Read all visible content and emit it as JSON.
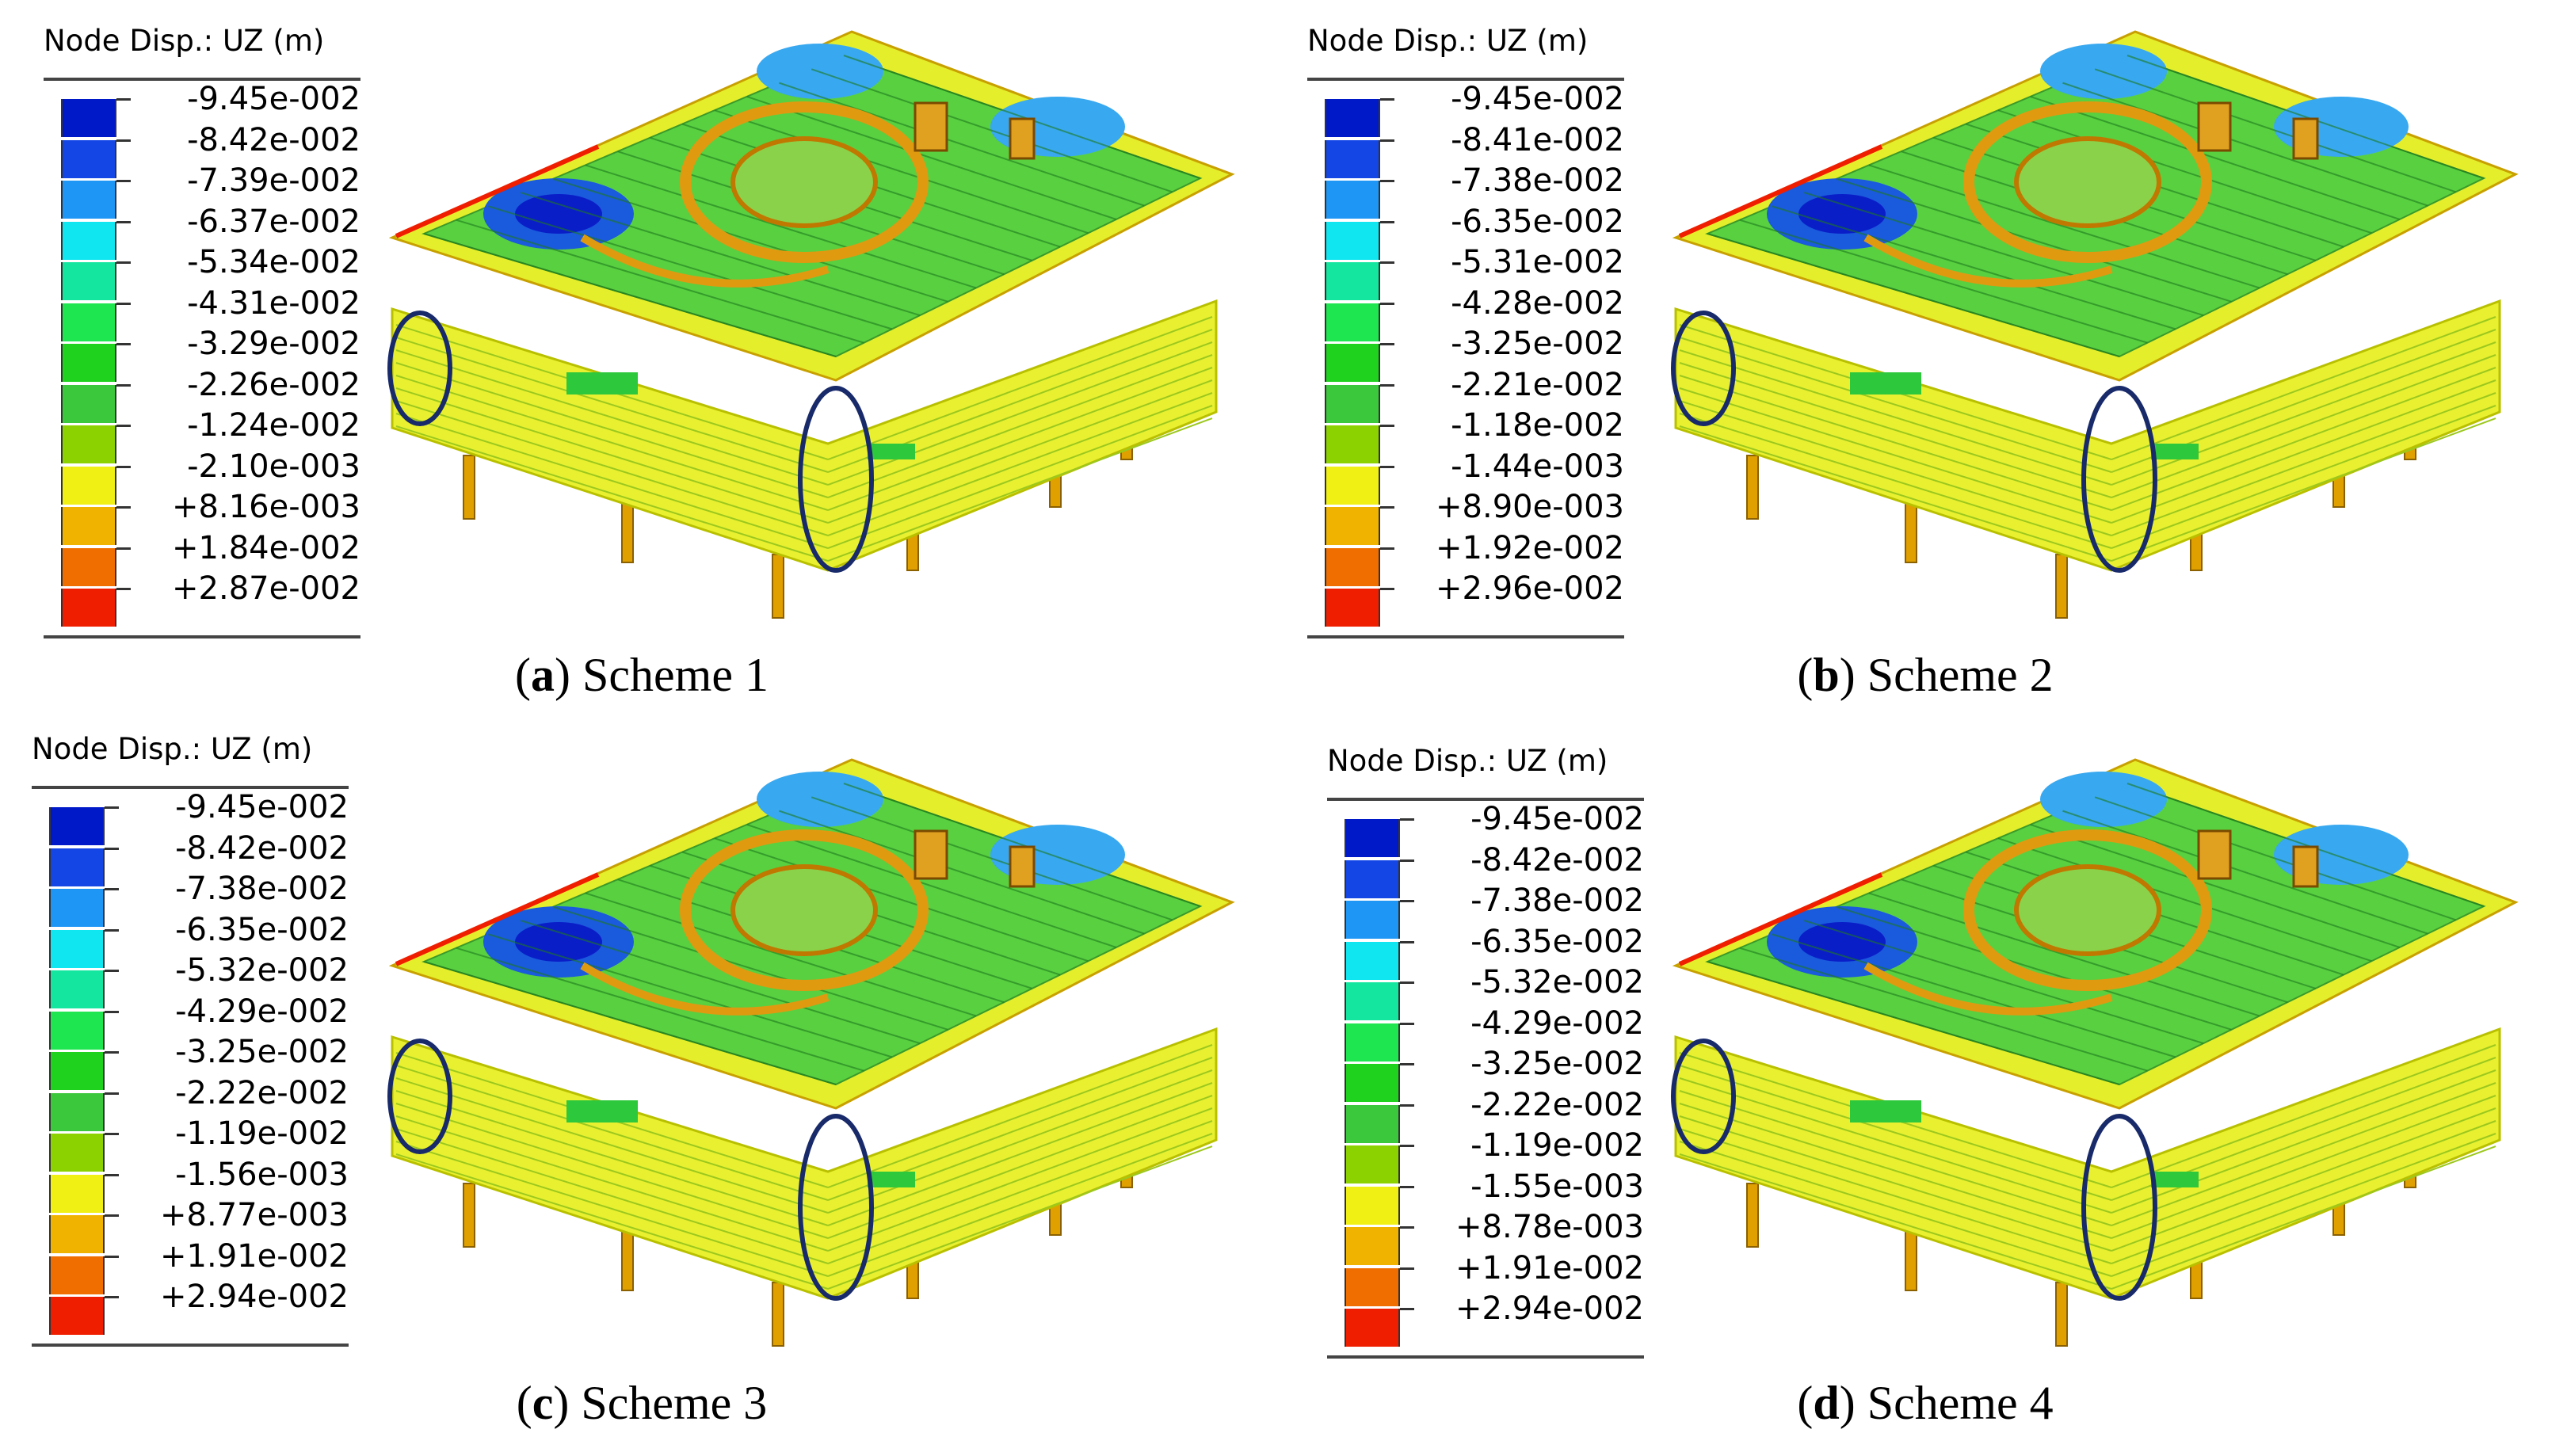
{
  "legend_colors": [
    "#0019c8",
    "#1446e6",
    "#1e96f5",
    "#10e6f0",
    "#14e6a0",
    "#1ee650",
    "#1ed21e",
    "#3cc83c",
    "#8cd200",
    "#f0f014",
    "#f0b400",
    "#f06e00",
    "#f01e00"
  ],
  "panels": [
    {
      "legend_title": "Node Disp.: UZ (m)",
      "legend_labels": [
        "-9.45e-002",
        "-8.42e-002",
        "-7.39e-002",
        "-6.37e-002",
        "-5.34e-002",
        "-4.31e-002",
        "-3.29e-002",
        "-2.26e-002",
        "-1.24e-002",
        "-2.10e-003",
        "+8.16e-003",
        "+1.84e-002",
        "+2.87e-002"
      ],
      "caption_paren_open": "(",
      "caption_letter": "a",
      "caption_paren_close": ")",
      "caption_text": " Scheme 1"
    },
    {
      "legend_title": "Node Disp.: UZ (m)",
      "legend_labels": [
        "-9.45e-002",
        "-8.41e-002",
        "-7.38e-002",
        "-6.35e-002",
        "-5.31e-002",
        "-4.28e-002",
        "-3.25e-002",
        "-2.21e-002",
        "-1.18e-002",
        "-1.44e-003",
        "+8.90e-003",
        "+1.92e-002",
        "+2.96e-002"
      ],
      "caption_paren_open": "(",
      "caption_letter": "b",
      "caption_paren_close": ")",
      "caption_text": " Scheme 2"
    },
    {
      "legend_title": "Node Disp.: UZ (m)",
      "legend_labels": [
        "-9.45e-002",
        "-8.42e-002",
        "-7.38e-002",
        "-6.35e-002",
        "-5.32e-002",
        "-4.29e-002",
        "-3.25e-002",
        "-2.22e-002",
        "-1.19e-002",
        "-1.56e-003",
        "+8.77e-003",
        "+1.91e-002",
        "+2.94e-002"
      ],
      "caption_paren_open": "(",
      "caption_letter": "c",
      "caption_paren_close": ")",
      "caption_text": " Scheme 3"
    },
    {
      "legend_title": "Node Disp.: UZ (m)",
      "legend_labels": [
        "-9.45e-002",
        "-8.42e-002",
        "-7.38e-002",
        "-6.35e-002",
        "-5.32e-002",
        "-4.29e-002",
        "-3.25e-002",
        "-2.22e-002",
        "-1.19e-002",
        "-1.55e-003",
        "+8.78e-003",
        "+1.91e-002",
        "+2.94e-002"
      ],
      "caption_paren_open": "(",
      "caption_letter": "d",
      "caption_paren_close": ")",
      "caption_text": " Scheme 4"
    }
  ]
}
